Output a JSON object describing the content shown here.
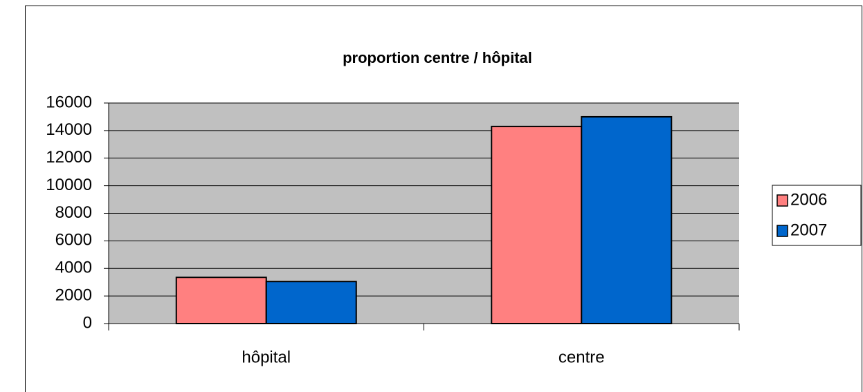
{
  "chart_data": {
    "type": "bar",
    "title": "proportion centre / hôpital",
    "categories": [
      "hôpital",
      "centre"
    ],
    "series": [
      {
        "name": "2006",
        "color": "#ff8080",
        "values": [
          3350,
          14300
        ]
      },
      {
        "name": "2007",
        "color": "#0066cc",
        "values": [
          3050,
          15000
        ]
      }
    ],
    "ylim": [
      0,
      16000
    ],
    "yticks": [
      0,
      2000,
      4000,
      6000,
      8000,
      10000,
      12000,
      14000,
      16000
    ],
    "grid": true,
    "legend": "right"
  }
}
